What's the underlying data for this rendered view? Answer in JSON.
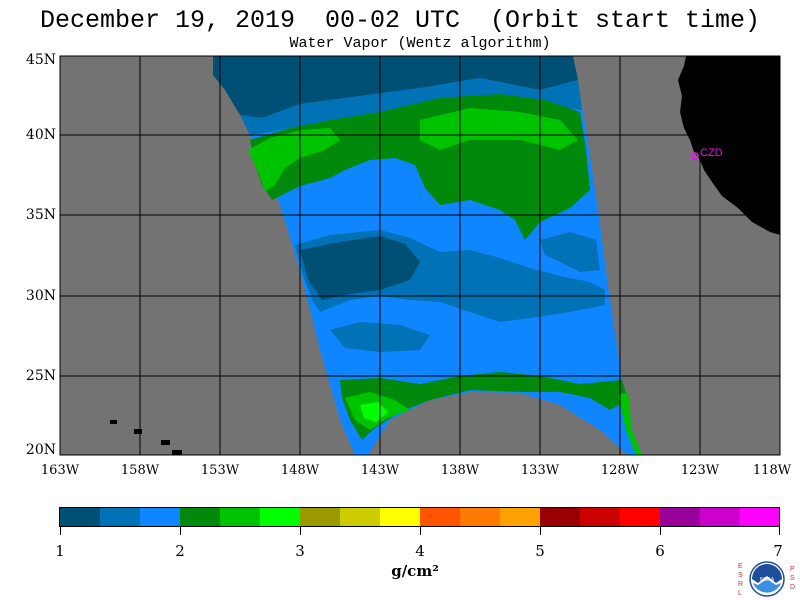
{
  "title": "December 19, 2019  00-02 UTC  (Orbit start time)",
  "subtitle": "Water Vapor (Wentz algorithm)",
  "map": {
    "latitude_labels": [
      "45N",
      "40N",
      "35N",
      "30N",
      "25N",
      "20N"
    ],
    "longitude_labels": [
      "163W",
      "158W",
      "153W",
      "148W",
      "143W",
      "138W",
      "133W",
      "128W",
      "123W",
      "118W"
    ],
    "station_label": "CZD",
    "colors": {
      "ocean_nodata": "#737373",
      "land": "#000000",
      "station": "#ff00ff",
      "grid": "#000000"
    }
  },
  "colorbar": {
    "labels": [
      "1",
      "2",
      "3",
      "4",
      "5",
      "6",
      "7"
    ],
    "units": "g/cm²",
    "colors": [
      "#004f74",
      "#0072b5",
      "#0f86ff",
      "#00890a",
      "#00c300",
      "#00ff00",
      "#999900",
      "#cccc00",
      "#ffff00",
      "#ff5500",
      "#ff7a00",
      "#ffa200",
      "#990000",
      "#cc0000",
      "#ff0000",
      "#990099",
      "#cc00cc",
      "#ff00ff"
    ]
  },
  "logo": {
    "left_letters": "ESRL",
    "right_letters": "PSD",
    "center_text": "NOAA"
  }
}
